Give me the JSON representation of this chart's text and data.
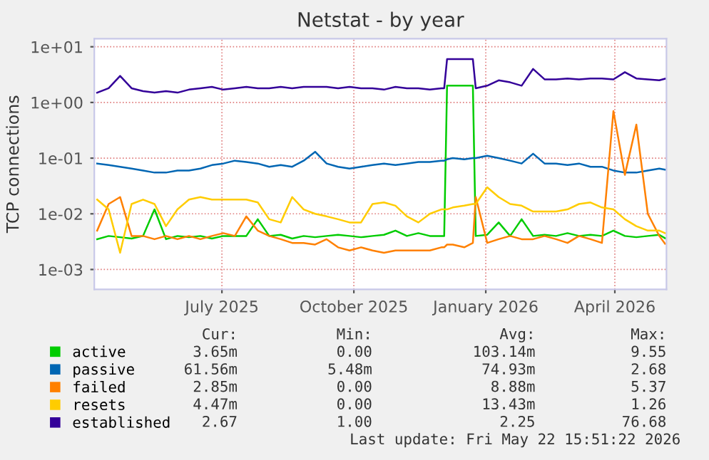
{
  "chart_data": {
    "type": "line",
    "title": "Netstat - by year",
    "ylabel": "TCP connections",
    "x": [
      "2025-04-20",
      "2025-04-28",
      "2025-05-06",
      "2025-05-14",
      "2025-05-22",
      "2025-05-30",
      "2025-06-07",
      "2025-06-15",
      "2025-06-23",
      "2025-07-01",
      "2025-07-09",
      "2025-07-17",
      "2025-07-25",
      "2025-08-02",
      "2025-08-10",
      "2025-08-18",
      "2025-08-26",
      "2025-09-03",
      "2025-09-11",
      "2025-09-19",
      "2025-09-27",
      "2025-10-05",
      "2025-10-13",
      "2025-10-21",
      "2025-10-29",
      "2025-11-06",
      "2025-11-14",
      "2025-11-22",
      "2025-11-30",
      "2025-12-08",
      "2025-12-16",
      "2025-12-18",
      "2025-12-20",
      "2025-12-24",
      "2026-01-01",
      "2026-01-07",
      "2026-01-09",
      "2026-01-17",
      "2026-01-25",
      "2026-02-02",
      "2026-02-10",
      "2026-02-18",
      "2026-02-26",
      "2026-03-06",
      "2026-03-14",
      "2026-03-22",
      "2026-03-30",
      "2026-04-07",
      "2026-04-15",
      "2026-04-23",
      "2026-05-01",
      "2026-05-09",
      "2026-05-17",
      "2026-05-21"
    ],
    "series": [
      {
        "name": "active",
        "color": "#00cc00",
        "values": [
          0.0035,
          0.004,
          0.0038,
          0.0036,
          0.004,
          0.012,
          0.0035,
          0.004,
          0.0038,
          0.004,
          0.0036,
          0.004,
          0.004,
          0.004,
          0.008,
          0.004,
          0.0042,
          0.0036,
          0.004,
          0.0038,
          0.004,
          0.0042,
          0.004,
          0.0038,
          0.004,
          0.0042,
          0.005,
          0.004,
          0.0045,
          0.004,
          0.004,
          0.004,
          2.0,
          2.0,
          2.0,
          2.0,
          0.004,
          0.0042,
          0.007,
          0.004,
          0.008,
          0.004,
          0.0042,
          0.004,
          0.0045,
          0.004,
          0.0042,
          0.004,
          0.005,
          0.004,
          0.0038,
          0.004,
          0.0042,
          0.00365
        ]
      },
      {
        "name": "passive",
        "color": "#0066b3",
        "values": [
          0.08,
          0.075,
          0.07,
          0.065,
          0.06,
          0.055,
          0.055,
          0.06,
          0.06,
          0.065,
          0.075,
          0.08,
          0.09,
          0.085,
          0.08,
          0.07,
          0.075,
          0.07,
          0.09,
          0.13,
          0.08,
          0.07,
          0.065,
          0.07,
          0.075,
          0.08,
          0.075,
          0.08,
          0.085,
          0.085,
          0.09,
          0.09,
          0.095,
          0.1,
          0.095,
          0.1,
          0.1,
          0.11,
          0.1,
          0.09,
          0.08,
          0.12,
          0.08,
          0.08,
          0.075,
          0.08,
          0.07,
          0.07,
          0.06,
          0.055,
          0.055,
          0.06,
          0.065,
          0.062
        ]
      },
      {
        "name": "failed",
        "color": "#ff8000",
        "values": [
          0.005,
          0.015,
          0.02,
          0.004,
          0.004,
          0.0035,
          0.004,
          0.0035,
          0.004,
          0.0035,
          0.004,
          0.0045,
          0.004,
          0.009,
          0.005,
          0.004,
          0.0035,
          0.003,
          0.003,
          0.0028,
          0.0035,
          0.0025,
          0.0022,
          0.0025,
          0.0022,
          0.002,
          0.0022,
          0.0022,
          0.0022,
          0.0022,
          0.0025,
          0.0025,
          0.0028,
          0.0028,
          0.0025,
          0.003,
          0.02,
          0.003,
          0.0035,
          0.004,
          0.0035,
          0.0035,
          0.004,
          0.0035,
          0.003,
          0.004,
          0.0035,
          0.003,
          0.7,
          0.05,
          0.4,
          0.01,
          0.004,
          0.0029
        ]
      },
      {
        "name": "resets",
        "color": "#ffcc00",
        "values": [
          0.018,
          0.012,
          0.002,
          0.015,
          0.018,
          0.015,
          0.006,
          0.012,
          0.018,
          0.02,
          0.018,
          0.018,
          0.018,
          0.018,
          0.016,
          0.008,
          0.007,
          0.02,
          0.012,
          0.01,
          0.009,
          0.008,
          0.007,
          0.007,
          0.015,
          0.016,
          0.014,
          0.009,
          0.007,
          0.01,
          0.012,
          0.012,
          0.012,
          0.013,
          0.014,
          0.015,
          0.015,
          0.03,
          0.02,
          0.015,
          0.014,
          0.011,
          0.011,
          0.011,
          0.012,
          0.015,
          0.016,
          0.013,
          0.012,
          0.008,
          0.006,
          0.005,
          0.005,
          0.0045
        ]
      },
      {
        "name": "established",
        "color": "#330099",
        "values": [
          1.5,
          1.8,
          3.0,
          1.8,
          1.6,
          1.5,
          1.6,
          1.5,
          1.7,
          1.8,
          1.9,
          1.7,
          1.8,
          1.9,
          1.8,
          1.8,
          1.9,
          1.8,
          1.9,
          1.9,
          1.9,
          1.8,
          1.9,
          1.8,
          1.8,
          1.7,
          1.9,
          1.8,
          1.8,
          1.7,
          1.8,
          1.8,
          6.0,
          6.0,
          6.0,
          6.0,
          1.8,
          2.0,
          2.5,
          2.3,
          2.0,
          4.0,
          2.6,
          2.6,
          2.7,
          2.6,
          2.7,
          2.7,
          2.6,
          3.5,
          2.7,
          2.6,
          2.5,
          2.67
        ]
      }
    ],
    "log": "y",
    "xlim": [
      "2025-04-18",
      "2026-05-22"
    ],
    "xticks": [
      {
        "value": "2025-07-16",
        "label": "July 2025"
      },
      {
        "value": "2025-10-16",
        "label": "October 2025"
      },
      {
        "value": "2026-01-16",
        "label": "January 2026"
      },
      {
        "value": "2026-04-16",
        "label": "April 2026"
      }
    ],
    "ylim": [
      0.00044,
      14
    ],
    "yticks": [
      {
        "value": 0.001,
        "label": "1e-03"
      },
      {
        "value": 0.01,
        "label": "1e-02"
      },
      {
        "value": 0.1,
        "label": "1e-01"
      },
      {
        "value": 1,
        "label": "1e+00"
      },
      {
        "value": 10,
        "label": "1e+01"
      }
    ],
    "grid": true,
    "legend": "bottom",
    "annotations": [
      "Cur:",
      "Min:",
      "Avg:",
      "Max:",
      "3.65m",
      "0.00",
      "103.14m",
      "9.55",
      "61.56m",
      "5.48m",
      "74.93m",
      "2.68",
      "2.85m",
      "0.00",
      "8.88m",
      "5.37",
      "4.47m",
      "0.00",
      "13.43m",
      "1.26",
      "2.67",
      "1.00",
      "2.25",
      "76.68",
      "Last update: Fri May 22 15:51:22 2026"
    ]
  }
}
